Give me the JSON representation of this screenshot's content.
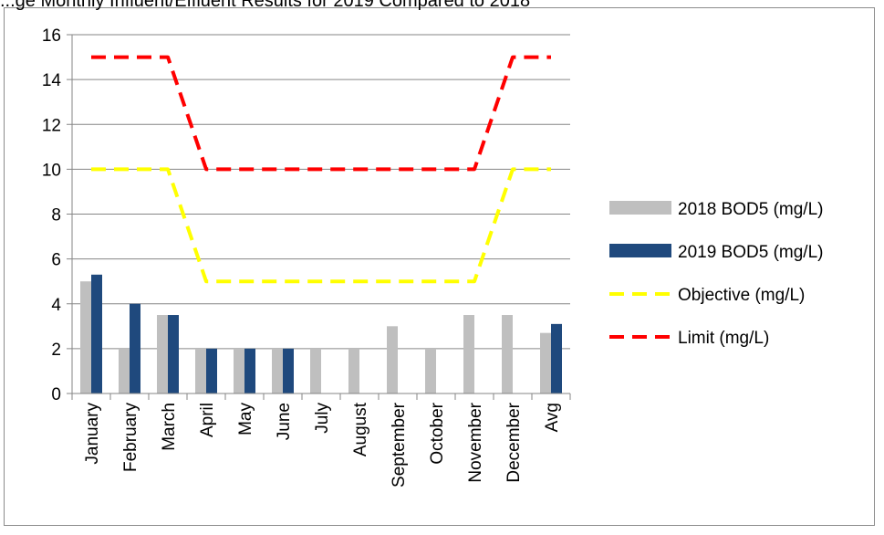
{
  "page": {
    "title": "...ge Monthly Influent/Effluent Results for 2019 Compared to 2018"
  },
  "chart_data": {
    "type": "bar",
    "categories": [
      "January",
      "February",
      "March",
      "April",
      "May",
      "June",
      "July",
      "August",
      "September",
      "October",
      "November",
      "December",
      "Avg"
    ],
    "series": [
      {
        "name": "2018 BOD5 (mg/L)",
        "kind": "bar",
        "color": "#bfbfbf",
        "values": [
          5,
          2,
          3.5,
          2,
          2,
          2,
          2,
          2,
          3,
          2,
          3.5,
          3.5,
          2.7
        ]
      },
      {
        "name": "2019 BOD5 (mg/L)",
        "kind": "bar",
        "color": "#1f497d",
        "values": [
          5.3,
          4,
          3.5,
          2,
          2,
          2,
          null,
          null,
          null,
          null,
          null,
          null,
          3.1
        ]
      },
      {
        "name": "Objective (mg/L)",
        "kind": "line",
        "dash": "dashed",
        "color": "#ffff00",
        "values": [
          10,
          10,
          10,
          5,
          5,
          5,
          5,
          5,
          5,
          5,
          5,
          10,
          10
        ]
      },
      {
        "name": "Limit (mg/L)",
        "kind": "line",
        "dash": "dashed",
        "color": "#ff0000",
        "values": [
          15,
          15,
          15,
          10,
          10,
          10,
          10,
          10,
          10,
          10,
          10,
          15,
          15
        ]
      }
    ],
    "y_ticks": [
      "0",
      "2",
      "4",
      "6",
      "8",
      "10",
      "12",
      "14",
      "16"
    ],
    "ylim": [
      0,
      16
    ],
    "grid": "horizontal",
    "legend_position": "right",
    "axis_color": "#868686"
  }
}
